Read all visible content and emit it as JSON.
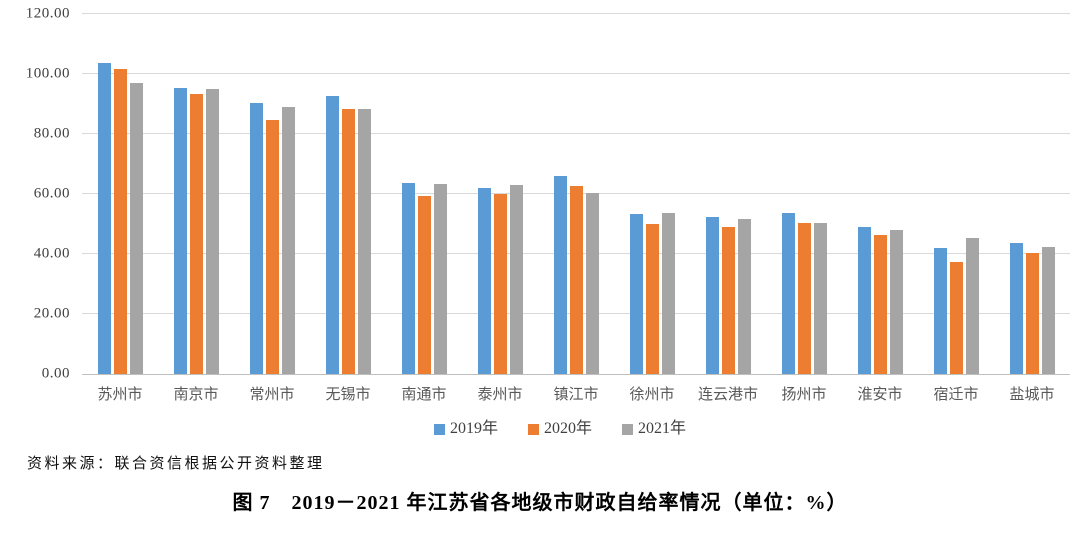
{
  "figure": {
    "source_note": "资料来源：联合资信根据公开资料整理",
    "caption": "图 7　2019－2021 年江苏省各地级市财政自给率情况（单位：%）"
  },
  "chart_data": {
    "type": "bar",
    "title": "图 7　2019－2021 年江苏省各地级市财政自给率情况（单位：%）",
    "xlabel": "",
    "ylabel": "",
    "unit": "%",
    "categories": [
      "苏州市",
      "南京市",
      "常州市",
      "无锡市",
      "南通市",
      "泰州市",
      "镇江市",
      "徐州市",
      "连云港市",
      "扬州市",
      "淮安市",
      "宿迁市",
      "盐城市"
    ],
    "series": [
      {
        "name": "2019年",
        "color": "#5B9BD5",
        "values": [
          103.8,
          95.4,
          90.2,
          92.6,
          63.6,
          62.0,
          66.0,
          53.3,
          52.3,
          53.8,
          48.9,
          42.0,
          43.6
        ]
      },
      {
        "name": "2020年",
        "color": "#ED7D31",
        "values": [
          101.8,
          93.2,
          84.8,
          88.5,
          59.3,
          60.0,
          62.7,
          50.0,
          49.0,
          50.4,
          46.2,
          37.4,
          40.4
        ]
      },
      {
        "name": "2021年",
        "color": "#A5A5A5",
        "values": [
          97.0,
          95.0,
          89.0,
          88.4,
          63.3,
          63.0,
          60.3,
          53.7,
          51.7,
          50.3,
          48.1,
          45.3,
          42.5
        ]
      }
    ],
    "ylim": [
      0,
      120
    ],
    "ytick_step": 20,
    "ytick_labels": [
      "0.00",
      "20.00",
      "40.00",
      "60.00",
      "80.00",
      "100.00",
      "120.00"
    ],
    "grid": true,
    "legend_position": "bottom",
    "colors": {
      "gridline": "#D9D9D9",
      "axis_line": "#BFBFBF",
      "ytick_text": "#3F3F3F",
      "xtick_text": "#595959",
      "legend_text": "#404040"
    }
  }
}
